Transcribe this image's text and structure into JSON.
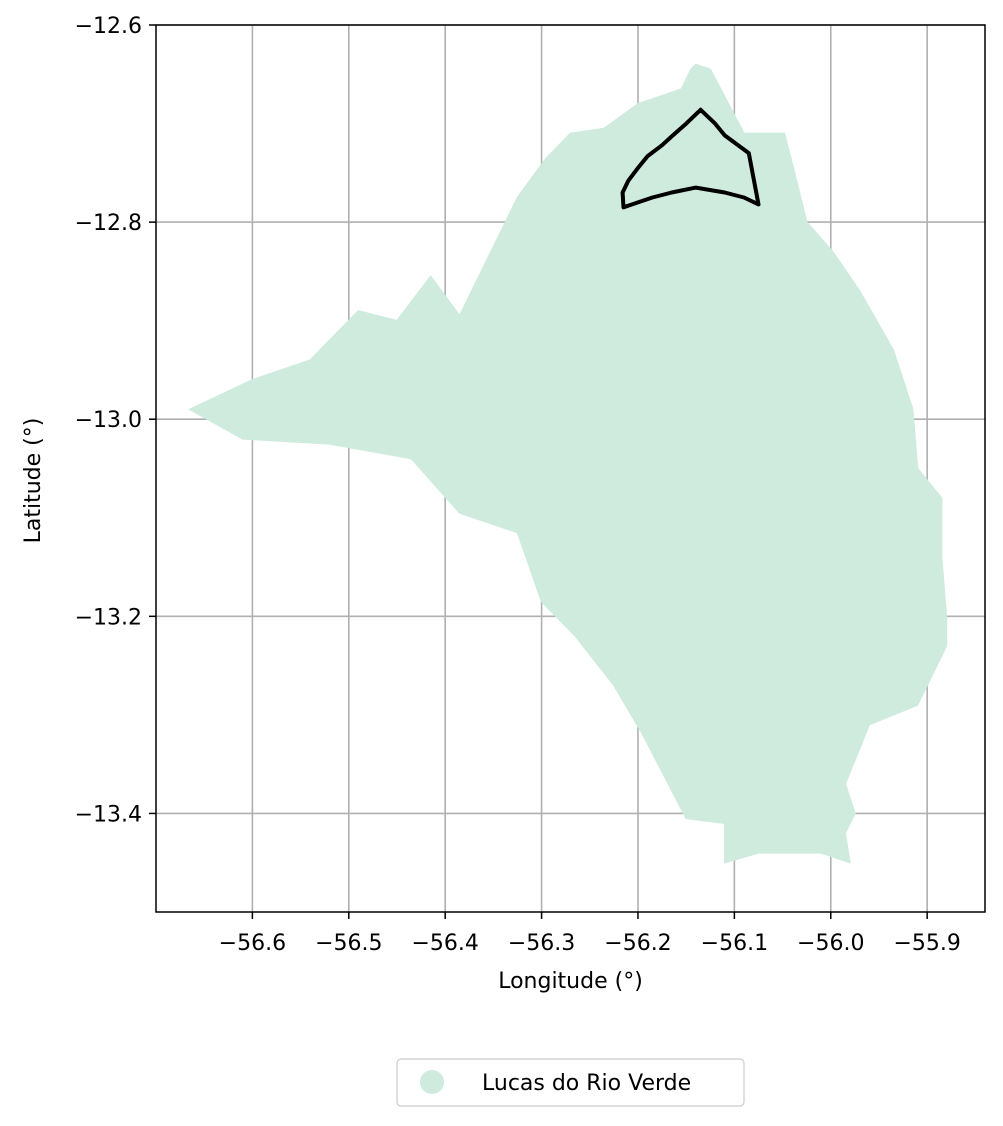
{
  "chart_data": {
    "type": "map",
    "xlabel": "Longitude (°)",
    "ylabel": "Latitude (°)",
    "xlim": [
      -56.7,
      -55.84
    ],
    "ylim": [
      -13.5,
      -12.6
    ],
    "x_ticks": [
      -56.6,
      -56.5,
      -56.4,
      -56.3,
      -56.2,
      -56.1,
      -56.0,
      -55.9
    ],
    "x_tick_labels": [
      "−56.6",
      "−56.5",
      "−56.4",
      "−56.3",
      "−56.2",
      "−56.1",
      "−56.0",
      "−55.9"
    ],
    "y_ticks": [
      -12.6,
      -12.8,
      -13.0,
      -13.2,
      -13.4
    ],
    "y_tick_labels": [
      "−12.6",
      "−12.8",
      "−13.0",
      "−13.2",
      "−13.4"
    ],
    "grid": true,
    "legend": {
      "placement": "bottom-center-below-axes",
      "entries": [
        {
          "label": "Lucas do Rio Verde",
          "color": "#cfebdd",
          "marker": "circle"
        }
      ]
    },
    "region": {
      "name": "Lucas do Rio Verde",
      "fill_color": "#cfebdd",
      "boundary": [
        [
          -56.14,
          -12.64
        ],
        [
          -56.125,
          -12.645
        ],
        [
          -56.09,
          -12.71
        ],
        [
          -56.048,
          -12.71
        ],
        [
          -56.035,
          -12.76
        ],
        [
          -56.025,
          -12.8
        ],
        [
          -55.998,
          -12.83
        ],
        [
          -55.97,
          -12.87
        ],
        [
          -55.935,
          -12.93
        ],
        [
          -55.915,
          -12.99
        ],
        [
          -55.91,
          -13.05
        ],
        [
          -55.885,
          -13.08
        ],
        [
          -55.885,
          -13.14
        ],
        [
          -55.88,
          -13.2
        ],
        [
          -55.88,
          -13.23
        ],
        [
          -55.91,
          -13.29
        ],
        [
          -55.96,
          -13.31
        ],
        [
          -55.985,
          -13.37
        ],
        [
          -55.975,
          -13.4
        ],
        [
          -55.985,
          -13.42
        ],
        [
          -55.98,
          -13.45
        ],
        [
          -56.01,
          -13.44
        ],
        [
          -56.05,
          -13.44
        ],
        [
          -56.075,
          -13.44
        ],
        [
          -56.11,
          -13.45
        ],
        [
          -56.11,
          -13.41
        ],
        [
          -56.15,
          -13.405
        ],
        [
          -56.195,
          -13.32
        ],
        [
          -56.225,
          -13.27
        ],
        [
          -56.265,
          -13.22
        ],
        [
          -56.3,
          -13.185
        ],
        [
          -56.325,
          -13.115
        ],
        [
          -56.385,
          -13.095
        ],
        [
          -56.435,
          -13.04
        ],
        [
          -56.52,
          -13.025
        ],
        [
          -56.61,
          -13.02
        ],
        [
          -56.665,
          -12.99
        ],
        [
          -56.6,
          -12.96
        ],
        [
          -56.54,
          -12.94
        ],
        [
          -56.49,
          -12.89
        ],
        [
          -56.45,
          -12.9
        ],
        [
          -56.415,
          -12.855
        ],
        [
          -56.385,
          -12.895
        ],
        [
          -56.355,
          -12.835
        ],
        [
          -56.325,
          -12.775
        ],
        [
          -56.295,
          -12.735
        ],
        [
          -56.27,
          -12.71
        ],
        [
          -56.235,
          -12.705
        ],
        [
          -56.2,
          -12.68
        ],
        [
          -56.155,
          -12.665
        ],
        [
          -56.145,
          -12.645
        ]
      ]
    },
    "outline": {
      "color": "#000000",
      "path": [
        [
          -56.135,
          -12.686
        ],
        [
          -56.12,
          -12.7
        ],
        [
          -56.11,
          -12.712
        ],
        [
          -56.085,
          -12.73
        ],
        [
          -56.075,
          -12.782
        ],
        [
          -56.09,
          -12.775
        ],
        [
          -56.11,
          -12.77
        ],
        [
          -56.14,
          -12.765
        ],
        [
          -56.165,
          -12.77
        ],
        [
          -56.185,
          -12.775
        ],
        [
          -56.2,
          -12.78
        ],
        [
          -56.215,
          -12.785
        ],
        [
          -56.216,
          -12.77
        ],
        [
          -56.21,
          -12.758
        ],
        [
          -56.2,
          -12.745
        ],
        [
          -56.19,
          -12.733
        ],
        [
          -56.175,
          -12.722
        ],
        [
          -56.165,
          -12.713
        ],
        [
          -56.15,
          -12.7
        ],
        [
          -56.135,
          -12.686
        ]
      ]
    }
  }
}
